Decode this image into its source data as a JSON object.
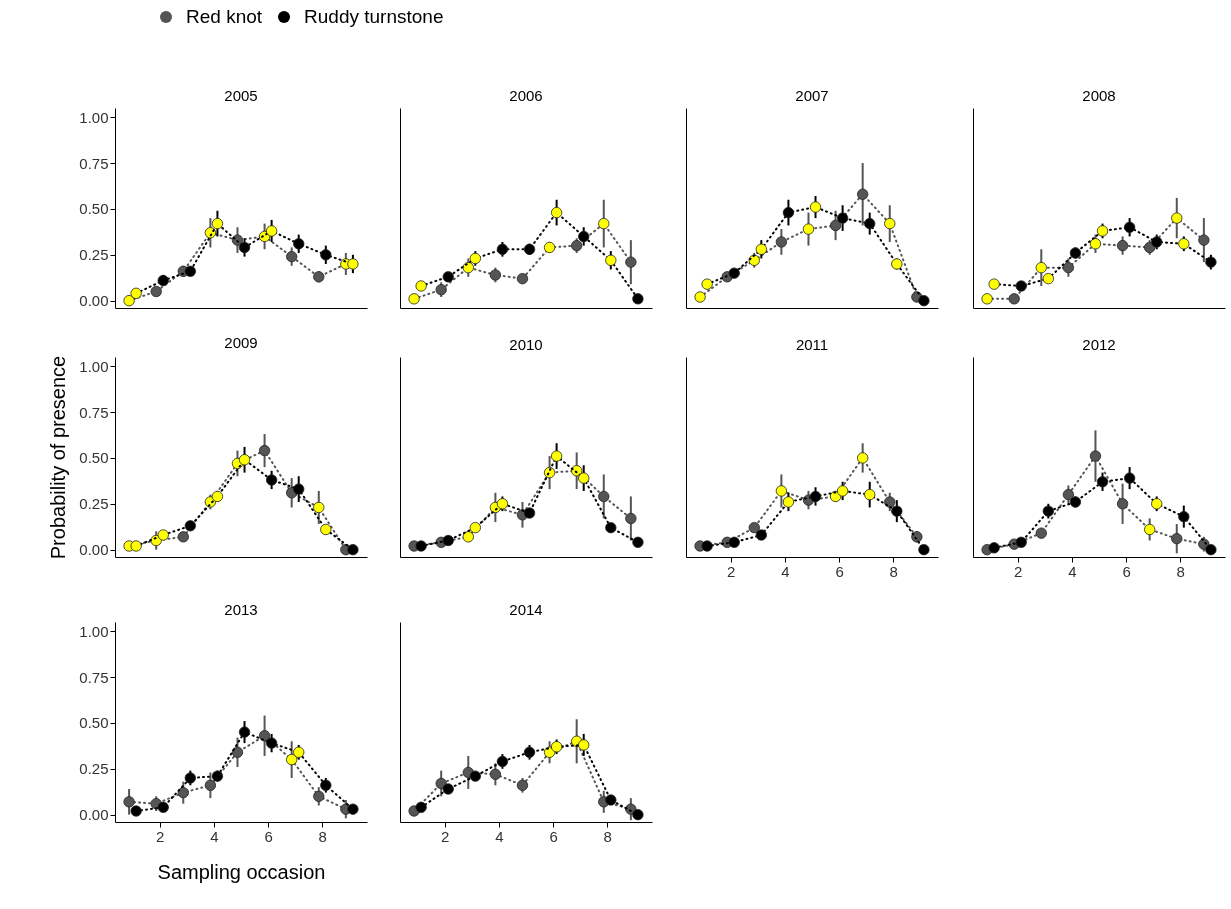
{
  "chart_data": [
    {
      "type": "line",
      "title": "2005",
      "xlim": [
        0.35,
        9.65
      ],
      "xticks": [
        2,
        4,
        6,
        8
      ],
      "ylim": [
        -0.04,
        1.05
      ],
      "yticks": [
        {
          "value": 0,
          "label": "0.00"
        },
        {
          "value": 0.25,
          "label": "0.25"
        },
        {
          "value": 0.5,
          "label": "0.50"
        },
        {
          "value": 0.75,
          "label": "0.75"
        },
        {
          "value": 1,
          "label": "1.00"
        }
      ],
      "tick_labels": "y",
      "marker": "circle",
      "line_style": "dotted",
      "legend": "top right",
      "series": [
        {
          "name": "Red knot",
          "color": "#555555",
          "x": [
            0.87,
            1.87,
            2.87,
            3.87,
            4.87,
            5.87,
            6.87,
            7.87,
            8.87
          ],
          "values": [
            0.0,
            0.05,
            0.16,
            0.37,
            0.33,
            0.35,
            0.24,
            0.13,
            0.2
          ],
          "errors": [
            null,
            0.02,
            0.03,
            0.08,
            0.07,
            0.07,
            0.05,
            0.03,
            0.06
          ],
          "colors": [
            "#ffff00",
            "#555555",
            "#555555",
            "#ffff00",
            "#555555",
            "#ffff00",
            "#555555",
            "#555555",
            "#ffff00"
          ]
        },
        {
          "name": "Ruddy turnstone",
          "color": "#000000",
          "x": [
            1.13,
            2.13,
            3.13,
            4.13,
            5.13,
            6.13,
            7.13,
            8.13,
            9.13
          ],
          "values": [
            0.04,
            0.11,
            0.16,
            0.42,
            0.29,
            0.38,
            0.31,
            0.25,
            0.2
          ],
          "errors": [
            null,
            0.03,
            0.02,
            0.07,
            0.05,
            0.06,
            0.05,
            0.05,
            0.05
          ],
          "colors": [
            "#ffff00",
            "#000000",
            "#000000",
            "#ffff00",
            "#000000",
            "#ffff00",
            "#000000",
            "#000000",
            "#ffff00"
          ]
        }
      ]
    },
    {
      "type": "line",
      "title": "2006",
      "xlim": [
        0.35,
        9.65
      ],
      "xticks": [
        2,
        4,
        6,
        8
      ],
      "ylim": [
        -0.04,
        1.05
      ],
      "tick_labels": false,
      "marker": "circle",
      "line_style": "dotted",
      "series": [
        {
          "color": "#555555",
          "x": [
            0.87,
            1.87,
            2.87,
            3.87,
            4.87,
            5.87,
            6.87,
            7.87,
            8.87
          ],
          "values": [
            0.01,
            0.06,
            0.18,
            0.14,
            0.12,
            0.29,
            0.3,
            0.42,
            0.21
          ],
          "errors": [
            null,
            0.04,
            0.05,
            0.04,
            0.02,
            0.03,
            0.04,
            0.13,
            0.12
          ],
          "colors": [
            "#ffff00",
            "#555555",
            "#ffff00",
            "#555555",
            "#555555",
            "#ffff00",
            "#555555",
            "#ffff00",
            "#555555"
          ]
        },
        {
          "color": "#000000",
          "x": [
            1.13,
            2.13,
            3.13,
            4.13,
            5.13,
            6.13,
            7.13,
            8.13,
            9.13
          ],
          "values": [
            0.08,
            0.13,
            0.23,
            0.28,
            0.28,
            0.48,
            0.35,
            0.22,
            0.01
          ],
          "errors": [
            null,
            0.02,
            0.04,
            0.04,
            0.03,
            0.07,
            0.05,
            0.05,
            null
          ],
          "colors": [
            "#ffff00",
            "#000000",
            "#ffff00",
            "#000000",
            "#000000",
            "#ffff00",
            "#000000",
            "#ffff00",
            "#000000"
          ]
        }
      ]
    },
    {
      "type": "line",
      "title": "2007",
      "xlim": [
        0.35,
        9.65
      ],
      "xticks": [
        2,
        4,
        6,
        8
      ],
      "ylim": [
        -0.04,
        1.05
      ],
      "tick_labels": false,
      "marker": "circle",
      "line_style": "dotted",
      "series": [
        {
          "color": "#555555",
          "x": [
            0.87,
            1.87,
            2.87,
            3.87,
            4.87,
            5.87,
            6.87,
            7.87,
            8.87
          ],
          "values": [
            0.02,
            0.13,
            0.22,
            0.32,
            0.39,
            0.41,
            0.58,
            0.42,
            0.02
          ],
          "errors": [
            null,
            0.02,
            0.04,
            0.07,
            0.09,
            0.08,
            0.17,
            0.1,
            null
          ],
          "colors": [
            "#ffff00",
            "#555555",
            "#ffff00",
            "#555555",
            "#ffff00",
            "#555555",
            "#555555",
            "#ffff00",
            "#555555"
          ]
        },
        {
          "color": "#000000",
          "x": [
            1.13,
            2.13,
            3.13,
            4.13,
            5.13,
            6.13,
            7.13,
            8.13,
            9.13
          ],
          "values": [
            0.09,
            0.15,
            0.28,
            0.48,
            0.51,
            0.45,
            0.42,
            0.2,
            0.0
          ],
          "errors": [
            0.02,
            0.02,
            0.05,
            0.07,
            0.06,
            0.07,
            0.06,
            0.03,
            null
          ],
          "colors": [
            "#ffff00",
            "#000000",
            "#ffff00",
            "#000000",
            "#ffff00",
            "#000000",
            "#000000",
            "#ffff00",
            "#000000"
          ]
        }
      ]
    },
    {
      "type": "line",
      "title": "2008",
      "xlim": [
        0.35,
        9.65
      ],
      "xticks": [
        2,
        4,
        6,
        8
      ],
      "ylim": [
        -0.04,
        1.05
      ],
      "tick_labels": false,
      "marker": "circle",
      "line_style": "dotted",
      "series": [
        {
          "color": "#555555",
          "x": [
            0.87,
            1.87,
            2.87,
            3.87,
            4.87,
            5.87,
            6.87,
            7.87,
            8.87
          ],
          "values": [
            0.01,
            0.01,
            0.18,
            0.18,
            0.31,
            0.3,
            0.29,
            0.45,
            0.33
          ],
          "errors": [
            null,
            null,
            0.1,
            0.05,
            0.05,
            0.05,
            0.04,
            0.11,
            0.12
          ],
          "colors": [
            "#ffff00",
            "#555555",
            "#ffff00",
            "#555555",
            "#ffff00",
            "#555555",
            "#555555",
            "#ffff00",
            "#555555"
          ]
        },
        {
          "color": "#000000",
          "x": [
            1.13,
            2.13,
            3.13,
            4.13,
            5.13,
            6.13,
            7.13,
            8.13,
            9.13
          ],
          "values": [
            0.09,
            0.08,
            0.12,
            0.26,
            0.38,
            0.4,
            0.32,
            0.31,
            0.21
          ],
          "errors": [
            null,
            null,
            0.02,
            0.03,
            0.04,
            0.05,
            0.04,
            0.04,
            0.04
          ],
          "colors": [
            "#ffff00",
            "#000000",
            "#ffff00",
            "#000000",
            "#ffff00",
            "#000000",
            "#000000",
            "#ffff00",
            "#000000"
          ]
        }
      ]
    },
    {
      "type": "line",
      "title": "2009",
      "ylabel": "Probability of presence",
      "xlim": [
        0.35,
        9.65
      ],
      "xticks": [
        2,
        4,
        6,
        8
      ],
      "ylim": [
        -0.04,
        1.05
      ],
      "yticks": [
        {
          "value": 0,
          "label": "0.00"
        },
        {
          "value": 0.25,
          "label": "0.25"
        },
        {
          "value": 0.5,
          "label": "0.50"
        },
        {
          "value": 0.75,
          "label": "0.75"
        },
        {
          "value": 1,
          "label": "1.00"
        }
      ],
      "tick_labels": "y",
      "marker": "circle",
      "line_style": "dotted",
      "series": [
        {
          "color": "#555555",
          "x": [
            0.87,
            1.87,
            2.87,
            3.87,
            4.87,
            5.87,
            6.87,
            7.87,
            8.87
          ],
          "values": [
            0.02,
            0.05,
            0.07,
            0.26,
            0.47,
            0.54,
            0.31,
            0.23,
            0.0
          ],
          "errors": [
            null,
            0.05,
            null,
            0.04,
            0.07,
            0.09,
            0.08,
            0.09,
            null
          ],
          "colors": [
            "#ffff00",
            "#ffff00",
            "#555555",
            "#ffff00",
            "#ffff00",
            "#555555",
            "#555555",
            "#ffff00",
            "#555555"
          ]
        },
        {
          "color": "#000000",
          "x": [
            1.13,
            2.13,
            3.13,
            4.13,
            5.13,
            6.13,
            7.13,
            8.13,
            9.13
          ],
          "values": [
            0.02,
            0.08,
            0.13,
            0.29,
            0.49,
            0.38,
            0.33,
            0.11,
            0.0
          ],
          "errors": [
            null,
            0.02,
            null,
            0.03,
            0.07,
            0.05,
            0.07,
            0.02,
            null
          ],
          "colors": [
            "#ffff00",
            "#ffff00",
            "#000000",
            "#ffff00",
            "#ffff00",
            "#000000",
            "#000000",
            "#ffff00",
            "#000000"
          ]
        }
      ]
    },
    {
      "type": "line",
      "title": "2010",
      "xlim": [
        0.35,
        9.65
      ],
      "xticks": [
        2,
        4,
        6,
        8
      ],
      "ylim": [
        -0.04,
        1.05
      ],
      "tick_labels": false,
      "marker": "circle",
      "line_style": "dotted",
      "series": [
        {
          "color": "#555555",
          "x": [
            0.87,
            1.87,
            2.87,
            3.87,
            4.87,
            5.87,
            6.87,
            7.87,
            8.87
          ],
          "values": [
            0.02,
            0.04,
            0.07,
            0.23,
            0.19,
            0.42,
            0.43,
            0.29,
            0.17
          ],
          "errors": [
            null,
            null,
            null,
            0.08,
            0.07,
            0.09,
            0.1,
            0.12,
            0.12
          ],
          "colors": [
            "#555555",
            "#555555",
            "#ffff00",
            "#ffff00",
            "#555555",
            "#ffff00",
            "#ffff00",
            "#555555",
            "#555555"
          ]
        },
        {
          "color": "#000000",
          "x": [
            1.13,
            2.13,
            3.13,
            4.13,
            5.13,
            6.13,
            7.13,
            8.13,
            9.13
          ],
          "values": [
            0.02,
            0.05,
            0.12,
            0.25,
            0.2,
            0.51,
            0.39,
            0.12,
            0.04
          ],
          "errors": [
            null,
            null,
            0.02,
            0.04,
            null,
            0.07,
            0.07,
            null,
            null
          ],
          "colors": [
            "#000000",
            "#000000",
            "#ffff00",
            "#ffff00",
            "#000000",
            "#ffff00",
            "#ffff00",
            "#000000",
            "#000000"
          ]
        }
      ]
    },
    {
      "type": "line",
      "title": "2011",
      "xlim": [
        0.35,
        9.65
      ],
      "xticks": [
        2,
        4,
        6,
        8
      ],
      "ylim": [
        -0.04,
        1.05
      ],
      "tick_labels": "x",
      "marker": "circle",
      "line_style": "dotted",
      "series": [
        {
          "color": "#555555",
          "x": [
            0.87,
            1.87,
            2.87,
            3.87,
            4.87,
            5.87,
            6.87,
            7.87,
            8.87
          ],
          "values": [
            0.02,
            0.04,
            0.12,
            0.32,
            0.27,
            0.29,
            0.5,
            0.26,
            0.07
          ],
          "errors": [
            null,
            null,
            0.02,
            0.09,
            0.05,
            0.03,
            0.08,
            0.05,
            0.03
          ],
          "colors": [
            "#555555",
            "#555555",
            "#555555",
            "#ffff00",
            "#555555",
            "#ffff00",
            "#ffff00",
            "#555555",
            "#555555"
          ]
        },
        {
          "color": "#000000",
          "x": [
            1.13,
            2.13,
            3.13,
            4.13,
            5.13,
            6.13,
            7.13,
            8.13,
            9.13
          ],
          "values": [
            0.02,
            0.04,
            0.08,
            0.26,
            0.29,
            0.32,
            0.3,
            0.21,
            0.0
          ],
          "errors": [
            null,
            null,
            null,
            0.05,
            0.05,
            0.05,
            0.07,
            0.06,
            null
          ],
          "colors": [
            "#000000",
            "#000000",
            "#000000",
            "#ffff00",
            "#000000",
            "#ffff00",
            "#ffff00",
            "#000000",
            "#000000"
          ]
        }
      ]
    },
    {
      "type": "line",
      "title": "2012",
      "xlim": [
        0.35,
        9.65
      ],
      "xticks": [
        2,
        4,
        6,
        8
      ],
      "ylim": [
        -0.04,
        1.05
      ],
      "tick_labels": "x",
      "marker": "circle",
      "line_style": "dotted",
      "series": [
        {
          "color": "#555555",
          "x": [
            0.87,
            1.87,
            2.87,
            3.87,
            4.87,
            5.87,
            6.87,
            7.87,
            8.87
          ],
          "values": [
            0.0,
            0.03,
            0.09,
            0.3,
            0.51,
            0.25,
            0.11,
            0.06,
            0.03
          ],
          "errors": [
            null,
            0.02,
            null,
            0.05,
            0.14,
            0.11,
            0.06,
            0.08,
            0.04
          ],
          "colors": [
            "#555555",
            "#555555",
            "#555555",
            "#555555",
            "#555555",
            "#555555",
            "#ffff00",
            "#555555",
            "#555555"
          ]
        },
        {
          "color": "#000000",
          "x": [
            1.13,
            2.13,
            3.13,
            4.13,
            5.13,
            6.13,
            7.13,
            8.13,
            9.13
          ],
          "values": [
            0.01,
            0.04,
            0.21,
            0.26,
            0.37,
            0.39,
            0.25,
            0.18,
            0.0
          ],
          "errors": [
            null,
            null,
            0.04,
            0.03,
            0.05,
            0.06,
            0.04,
            0.06,
            null
          ],
          "colors": [
            "#000000",
            "#000000",
            "#000000",
            "#000000",
            "#000000",
            "#000000",
            "#ffff00",
            "#000000",
            "#000000"
          ]
        }
      ]
    },
    {
      "type": "line",
      "title": "2013",
      "xlabel": "Sampling occasion",
      "xlim": [
        0.35,
        9.65
      ],
      "xticks": [
        2,
        4,
        6,
        8
      ],
      "ylim": [
        -0.04,
        1.05
      ],
      "yticks": [
        {
          "value": 0,
          "label": "0.00"
        },
        {
          "value": 0.25,
          "label": "0.25"
        },
        {
          "value": 0.5,
          "label": "0.50"
        },
        {
          "value": 0.75,
          "label": "0.75"
        },
        {
          "value": 1,
          "label": "1.00"
        }
      ],
      "marker": "circle",
      "line_style": "dotted",
      "series": [
        {
          "color": "#555555",
          "x": [
            0.87,
            1.87,
            2.87,
            3.87,
            4.87,
            5.87,
            6.87,
            7.87,
            8.87
          ],
          "values": [
            0.07,
            0.06,
            0.12,
            0.16,
            0.34,
            0.43,
            0.3,
            0.1,
            0.03
          ],
          "errors": [
            0.07,
            0.04,
            0.06,
            0.07,
            0.08,
            0.11,
            0.1,
            0.05,
            0.05
          ],
          "colors": [
            "#555555",
            "#555555",
            "#555555",
            "#555555",
            "#555555",
            "#555555",
            "#ffff00",
            "#555555",
            "#555555"
          ]
        },
        {
          "color": "#000000",
          "x": [
            1.13,
            2.13,
            3.13,
            4.13,
            5.13,
            6.13,
            7.13,
            8.13,
            9.13
          ],
          "values": [
            0.02,
            0.04,
            0.2,
            0.21,
            0.45,
            0.39,
            0.34,
            0.16,
            0.03
          ],
          "errors": [
            null,
            null,
            0.04,
            0.03,
            0.06,
            0.05,
            0.04,
            0.04,
            null
          ],
          "colors": [
            "#000000",
            "#000000",
            "#000000",
            "#000000",
            "#000000",
            "#000000",
            "#ffff00",
            "#000000",
            "#000000"
          ]
        }
      ]
    },
    {
      "type": "line",
      "title": "2014",
      "xlim": [
        0.35,
        9.65
      ],
      "xticks": [
        2,
        4,
        6,
        8
      ],
      "ylim": [
        -0.04,
        1.05
      ],
      "tick_labels": "x",
      "marker": "circle",
      "line_style": "dotted",
      "series": [
        {
          "color": "#555555",
          "x": [
            0.87,
            1.87,
            2.87,
            3.87,
            4.87,
            5.87,
            6.87,
            7.87,
            8.87
          ],
          "values": [
            0.02,
            0.17,
            0.23,
            0.22,
            0.16,
            0.34,
            0.4,
            0.07,
            0.03
          ],
          "errors": [
            null,
            0.07,
            0.09,
            0.06,
            0.04,
            0.06,
            0.12,
            0.06,
            0.06
          ],
          "colors": [
            "#555555",
            "#555555",
            "#555555",
            "#555555",
            "#555555",
            "#ffff00",
            "#ffff00",
            "#555555",
            "#555555"
          ]
        },
        {
          "color": "#000000",
          "x": [
            1.13,
            2.13,
            3.13,
            4.13,
            5.13,
            6.13,
            7.13,
            8.13,
            9.13
          ],
          "values": [
            0.04,
            0.14,
            0.21,
            0.29,
            0.34,
            0.37,
            0.38,
            0.08,
            0.0
          ],
          "errors": [
            null,
            null,
            null,
            0.04,
            0.04,
            0.04,
            0.06,
            null,
            null
          ],
          "colors": [
            "#000000",
            "#000000",
            "#000000",
            "#000000",
            "#000000",
            "#ffff00",
            "#ffff00",
            "#000000",
            "#000000"
          ]
        }
      ]
    }
  ]
}
